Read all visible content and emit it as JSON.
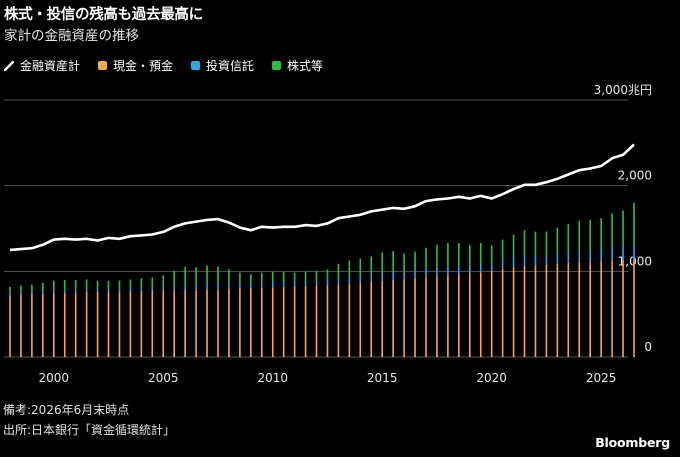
{
  "header": {
    "title": "株式・投信の残高も過去最高に",
    "subtitle": "家計の金融資産の推移"
  },
  "legend": [
    {
      "label": "金融資産計",
      "color": "#ffffff",
      "kind": "line"
    },
    {
      "label": "現金・預金",
      "color": "#f7a64b",
      "kind": "bar"
    },
    {
      "label": "投資信託",
      "color": "#2fa6e8",
      "kind": "bar"
    },
    {
      "label": "株式等",
      "color": "#2fbf3f",
      "kind": "bar"
    }
  ],
  "footer": {
    "note": "備考:2026年6月末時点",
    "source": "出所:日本銀行「資金循環統計」",
    "brand": "Bloomberg"
  },
  "chart_data": {
    "type": "bar",
    "unit_label": "兆円",
    "xlim": [
      1998,
      2026.5
    ],
    "ylim": [
      0,
      3000
    ],
    "yticks": [
      0,
      1000,
      2000,
      3000
    ],
    "ytick_labels": [
      "0",
      "1,000",
      "2,000",
      "3,000兆円"
    ],
    "xticks": [
      2000,
      2005,
      2010,
      2015,
      2020,
      2025
    ],
    "grid": true,
    "series": [
      {
        "name": "金融資産計",
        "type": "line",
        "color": "#ffffff",
        "points": [
          [
            1998.0,
            1250
          ],
          [
            1998.5,
            1260
          ],
          [
            1999.0,
            1270
          ],
          [
            1999.5,
            1310
          ],
          [
            2000.0,
            1370
          ],
          [
            2000.5,
            1380
          ],
          [
            2001.0,
            1370
          ],
          [
            2001.5,
            1380
          ],
          [
            2002.0,
            1360
          ],
          [
            2002.5,
            1390
          ],
          [
            2003.0,
            1380
          ],
          [
            2003.5,
            1410
          ],
          [
            2004.0,
            1420
          ],
          [
            2004.5,
            1430
          ],
          [
            2005.0,
            1460
          ],
          [
            2005.5,
            1520
          ],
          [
            2006.0,
            1560
          ],
          [
            2006.5,
            1580
          ],
          [
            2007.0,
            1600
          ],
          [
            2007.5,
            1610
          ],
          [
            2008.0,
            1570
          ],
          [
            2008.5,
            1510
          ],
          [
            2009.0,
            1480
          ],
          [
            2009.5,
            1520
          ],
          [
            2010.0,
            1510
          ],
          [
            2010.5,
            1520
          ],
          [
            2011.0,
            1520
          ],
          [
            2011.5,
            1540
          ],
          [
            2012.0,
            1530
          ],
          [
            2012.5,
            1560
          ],
          [
            2013.0,
            1620
          ],
          [
            2013.5,
            1640
          ],
          [
            2014.0,
            1660
          ],
          [
            2014.5,
            1700
          ],
          [
            2015.0,
            1720
          ],
          [
            2015.5,
            1740
          ],
          [
            2016.0,
            1730
          ],
          [
            2016.5,
            1760
          ],
          [
            2017.0,
            1820
          ],
          [
            2017.5,
            1840
          ],
          [
            2018.0,
            1850
          ],
          [
            2018.5,
            1870
          ],
          [
            2019.0,
            1850
          ],
          [
            2019.5,
            1880
          ],
          [
            2020.0,
            1850
          ],
          [
            2020.5,
            1900
          ],
          [
            2021.0,
            1960
          ],
          [
            2021.5,
            2010
          ],
          [
            2022.0,
            2010
          ],
          [
            2022.5,
            2040
          ],
          [
            2023.0,
            2080
          ],
          [
            2023.5,
            2130
          ],
          [
            2024.0,
            2180
          ],
          [
            2024.5,
            2200
          ],
          [
            2025.0,
            2230
          ],
          [
            2025.5,
            2320
          ],
          [
            2026.0,
            2360
          ],
          [
            2026.5,
            2480
          ]
        ]
      },
      {
        "name": "現金・預金",
        "type": "bar",
        "color": "#f7a64b",
        "points": [
          [
            1998.0,
            720
          ],
          [
            1998.5,
            730
          ],
          [
            1999.0,
            735
          ],
          [
            1999.5,
            740
          ],
          [
            2000.0,
            745
          ],
          [
            2000.5,
            750
          ],
          [
            2001.0,
            755
          ],
          [
            2001.5,
            760
          ],
          [
            2002.0,
            762
          ],
          [
            2002.5,
            765
          ],
          [
            2003.0,
            768
          ],
          [
            2003.5,
            770
          ],
          [
            2004.0,
            772
          ],
          [
            2004.5,
            775
          ],
          [
            2005.0,
            778
          ],
          [
            2005.5,
            780
          ],
          [
            2006.0,
            782
          ],
          [
            2006.5,
            785
          ],
          [
            2007.0,
            788
          ],
          [
            2007.5,
            790
          ],
          [
            2008.0,
            795
          ],
          [
            2008.5,
            800
          ],
          [
            2009.0,
            805
          ],
          [
            2009.5,
            810
          ],
          [
            2010.0,
            815
          ],
          [
            2010.5,
            820
          ],
          [
            2011.0,
            825
          ],
          [
            2011.5,
            830
          ],
          [
            2012.0,
            835
          ],
          [
            2012.5,
            840
          ],
          [
            2013.0,
            850
          ],
          [
            2013.5,
            860
          ],
          [
            2014.0,
            870
          ],
          [
            2014.5,
            880
          ],
          [
            2015.0,
            890
          ],
          [
            2015.5,
            900
          ],
          [
            2016.0,
            910
          ],
          [
            2016.5,
            920
          ],
          [
            2017.0,
            930
          ],
          [
            2017.5,
            940
          ],
          [
            2018.0,
            960
          ],
          [
            2018.5,
            970
          ],
          [
            2019.0,
            980
          ],
          [
            2019.5,
            990
          ],
          [
            2020.0,
            1010
          ],
          [
            2020.5,
            1030
          ],
          [
            2021.0,
            1050
          ],
          [
            2021.5,
            1060
          ],
          [
            2022.0,
            1070
          ],
          [
            2022.5,
            1080
          ],
          [
            2023.0,
            1090
          ],
          [
            2023.5,
            1100
          ],
          [
            2024.0,
            1110
          ],
          [
            2024.5,
            1115
          ],
          [
            2025.0,
            1120
          ],
          [
            2025.5,
            1125
          ],
          [
            2026.0,
            1130
          ],
          [
            2026.5,
            1130
          ]
        ]
      },
      {
        "name": "投資信託",
        "type": "bar",
        "color": "#2fa6e8",
        "points": [
          [
            1998.0,
            30
          ],
          [
            1998.5,
            30
          ],
          [
            1999.0,
            30
          ],
          [
            1999.5,
            35
          ],
          [
            2000.0,
            35
          ],
          [
            2000.5,
            35
          ],
          [
            2001.0,
            35
          ],
          [
            2001.5,
            35
          ],
          [
            2002.0,
            35
          ],
          [
            2002.5,
            35
          ],
          [
            2003.0,
            35
          ],
          [
            2003.5,
            35
          ],
          [
            2004.0,
            40
          ],
          [
            2004.5,
            40
          ],
          [
            2005.0,
            45
          ],
          [
            2005.5,
            55
          ],
          [
            2006.0,
            60
          ],
          [
            2006.5,
            65
          ],
          [
            2007.0,
            70
          ],
          [
            2007.5,
            75
          ],
          [
            2008.0,
            70
          ],
          [
            2008.5,
            65
          ],
          [
            2009.0,
            60
          ],
          [
            2009.5,
            65
          ],
          [
            2010.0,
            65
          ],
          [
            2010.5,
            62
          ],
          [
            2011.0,
            62
          ],
          [
            2011.5,
            60
          ],
          [
            2012.0,
            60
          ],
          [
            2012.5,
            62
          ],
          [
            2013.0,
            70
          ],
          [
            2013.5,
            75
          ],
          [
            2014.0,
            80
          ],
          [
            2014.5,
            85
          ],
          [
            2015.0,
            90
          ],
          [
            2015.5,
            95
          ],
          [
            2016.0,
            90
          ],
          [
            2016.5,
            90
          ],
          [
            2017.0,
            95
          ],
          [
            2017.5,
            100
          ],
          [
            2018.0,
            100
          ],
          [
            2018.5,
            100
          ],
          [
            2019.0,
            95
          ],
          [
            2019.5,
            100
          ],
          [
            2020.0,
            95
          ],
          [
            2020.5,
            100
          ],
          [
            2021.0,
            110
          ],
          [
            2021.5,
            120
          ],
          [
            2022.0,
            115
          ],
          [
            2022.5,
            115
          ],
          [
            2023.0,
            120
          ],
          [
            2023.5,
            125
          ],
          [
            2024.0,
            130
          ],
          [
            2024.5,
            135
          ],
          [
            2025.0,
            140
          ],
          [
            2025.5,
            150
          ],
          [
            2026.0,
            160
          ],
          [
            2026.5,
            170
          ]
        ]
      },
      {
        "name": "株式等",
        "type": "bar",
        "color": "#2fbf3f",
        "points": [
          [
            1998.0,
            70
          ],
          [
            1998.5,
            75
          ],
          [
            1999.0,
            80
          ],
          [
            1999.5,
            90
          ],
          [
            2000.0,
            110
          ],
          [
            2000.5,
            115
          ],
          [
            2001.0,
            110
          ],
          [
            2001.5,
            110
          ],
          [
            2002.0,
            90
          ],
          [
            2002.5,
            90
          ],
          [
            2003.0,
            90
          ],
          [
            2003.5,
            100
          ],
          [
            2004.0,
            110
          ],
          [
            2004.5,
            115
          ],
          [
            2005.0,
            130
          ],
          [
            2005.5,
            170
          ],
          [
            2006.0,
            210
          ],
          [
            2006.5,
            200
          ],
          [
            2007.0,
            210
          ],
          [
            2007.5,
            190
          ],
          [
            2008.0,
            160
          ],
          [
            2008.5,
            120
          ],
          [
            2009.0,
            100
          ],
          [
            2009.5,
            110
          ],
          [
            2010.0,
            115
          ],
          [
            2010.5,
            110
          ],
          [
            2011.0,
            100
          ],
          [
            2011.5,
            105
          ],
          [
            2012.0,
            110
          ],
          [
            2012.5,
            120
          ],
          [
            2013.0,
            170
          ],
          [
            2013.5,
            190
          ],
          [
            2014.0,
            200
          ],
          [
            2014.5,
            210
          ],
          [
            2015.0,
            240
          ],
          [
            2015.5,
            240
          ],
          [
            2016.0,
            210
          ],
          [
            2016.5,
            220
          ],
          [
            2017.0,
            250
          ],
          [
            2017.5,
            270
          ],
          [
            2018.0,
            270
          ],
          [
            2018.5,
            260
          ],
          [
            2019.0,
            230
          ],
          [
            2019.5,
            240
          ],
          [
            2020.0,
            200
          ],
          [
            2020.5,
            240
          ],
          [
            2021.0,
            270
          ],
          [
            2021.5,
            300
          ],
          [
            2022.0,
            280
          ],
          [
            2022.5,
            270
          ],
          [
            2023.0,
            300
          ],
          [
            2023.5,
            330
          ],
          [
            2024.0,
            350
          ],
          [
            2024.5,
            350
          ],
          [
            2025.0,
            360
          ],
          [
            2025.5,
            400
          ],
          [
            2026.0,
            420
          ],
          [
            2026.5,
            500
          ]
        ]
      }
    ]
  }
}
